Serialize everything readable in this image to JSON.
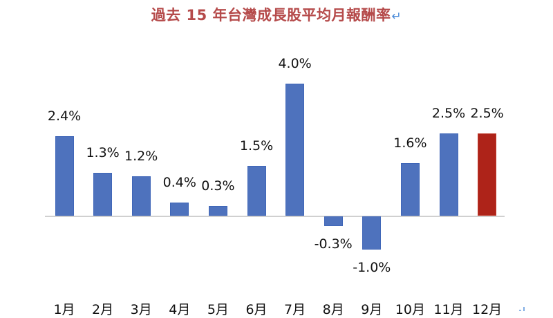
{
  "title": "過去 15 年台灣成長股平均月報酬率",
  "title_return_mark": "↵",
  "colors": {
    "title": "#b54a4a",
    "bar_default": "#4e72bd",
    "bar_highlight": "#ae2319",
    "axis": "#d0d0d0",
    "text": "#111111"
  },
  "chart_data": {
    "type": "bar",
    "title": "過去 15 年台灣成長股平均月報酬率",
    "xlabel": "",
    "ylabel": "",
    "categories": [
      "1月",
      "2月",
      "3月",
      "4月",
      "5月",
      "6月",
      "7月",
      "8月",
      "9月",
      "10月",
      "11月",
      "12月"
    ],
    "values": [
      2.4,
      1.3,
      1.2,
      0.4,
      0.3,
      1.5,
      4.0,
      -0.3,
      -1.0,
      1.6,
      2.5,
      2.5
    ],
    "data_labels": [
      "2.4%",
      "1.3%",
      "1.2%",
      "0.4%",
      "0.3%",
      "1.5%",
      "4.0%",
      "-0.3%",
      "-1.0%",
      "1.6%",
      "2.5%",
      "2.5%"
    ],
    "unit": "%",
    "highlight_index": 11,
    "ylim": [
      -1.0,
      4.0
    ],
    "grid": false,
    "legend": null
  }
}
